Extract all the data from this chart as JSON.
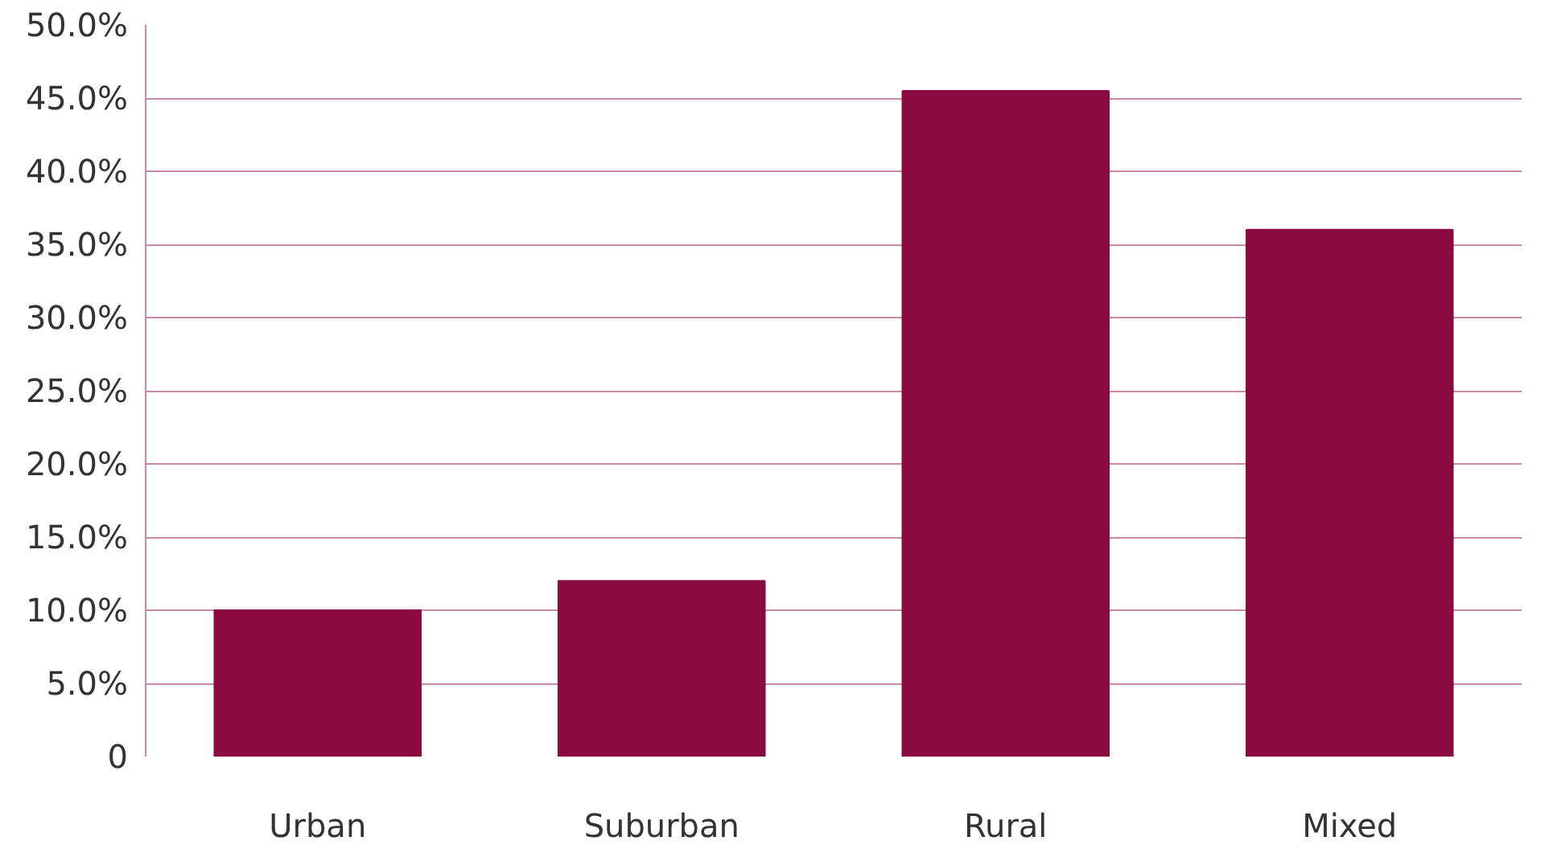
{
  "chart_data": {
    "type": "bar",
    "categories": [
      "Urban",
      "Suburban",
      "Rural",
      "Mixed"
    ],
    "values": [
      10.0,
      12.0,
      45.5,
      36.0
    ],
    "color": "#8b0a3f",
    "ylim": [
      0,
      50
    ],
    "yticks": [
      {
        "value": 0,
        "label": "0"
      },
      {
        "value": 5,
        "label": "5.0%"
      },
      {
        "value": 10,
        "label": "10.0%"
      },
      {
        "value": 15,
        "label": "15.0%"
      },
      {
        "value": 20,
        "label": "20.0%"
      },
      {
        "value": 25,
        "label": "25.0%"
      },
      {
        "value": 30,
        "label": "30.0%"
      },
      {
        "value": 35,
        "label": "35.0%"
      },
      {
        "value": 40,
        "label": "40.0%"
      },
      {
        "value": 45,
        "label": "45.0%"
      },
      {
        "value": 50,
        "label": "50.0%"
      }
    ],
    "grid": "y"
  }
}
